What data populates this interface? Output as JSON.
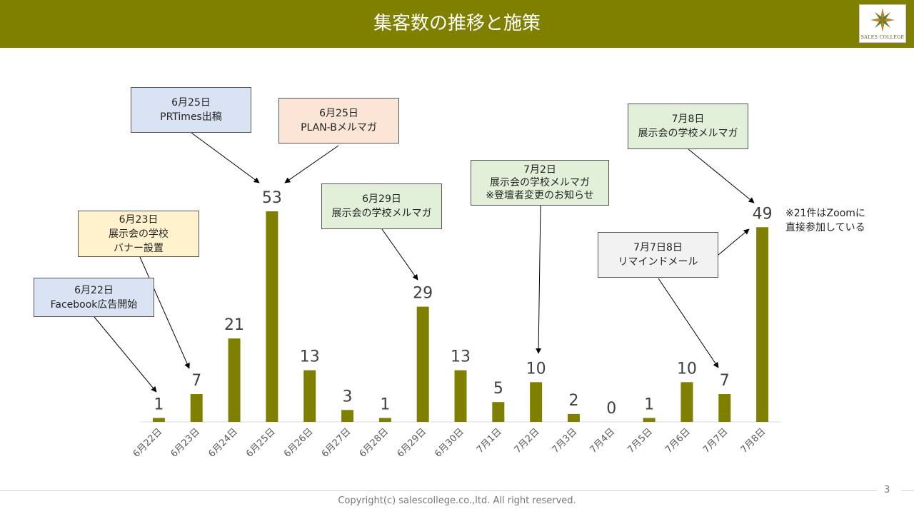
{
  "slide": {
    "title": "集客数の推移と施策",
    "logo_text": "SALES COLLEGE",
    "page_number": "3",
    "copyright": "Copyright(c) salescollege.co.,ltd. All right reserved.",
    "note": [
      "※21件はZoomに",
      "直接参加している"
    ]
  },
  "colors": {
    "header_bg": "#808000",
    "bar": "#808000",
    "callout_blue": "#dae3f3",
    "callout_orange": "#fbe5d6",
    "callout_yellow": "#fff2cc",
    "callout_green": "#e2f0d9",
    "callout_gray": "#f2f2f2"
  },
  "callouts": [
    {
      "id": "cb1",
      "lines": [
        "6月25日",
        "PRTimes出稿"
      ]
    },
    {
      "id": "cb2",
      "lines": [
        "6月25日",
        "PLAN-Bメルマガ"
      ]
    },
    {
      "id": "cb3",
      "lines": [
        "7月8日",
        "展示会の学校メルマガ"
      ]
    },
    {
      "id": "cb4",
      "lines": [
        "7月2日",
        "展示会の学校メルマガ",
        "※登壇者変更のお知らせ"
      ]
    },
    {
      "id": "cb5",
      "lines": [
        "6月29日",
        "展示会の学校メルマガ"
      ]
    },
    {
      "id": "cb6",
      "lines": [
        "6月23日",
        "展示会の学校",
        "バナー設置"
      ]
    },
    {
      "id": "cb7",
      "lines": [
        "7月7日8日",
        "リマインドメール"
      ]
    },
    {
      "id": "cb8",
      "lines": [
        "6月22日",
        "Facebook広告開始"
      ]
    }
  ],
  "chart_data": {
    "type": "bar",
    "title": "集客数の推移と施策",
    "xlabel": "",
    "ylabel": "",
    "ylim": [
      0,
      53
    ],
    "grid": false,
    "categories": [
      "6月22日",
      "6月23日",
      "6月24日",
      "6月25日",
      "6月26日",
      "6月27日",
      "6月28日",
      "6月29日",
      "6月30日",
      "7月1日",
      "7月2日",
      "7月3日",
      "7月4日",
      "7月5日",
      "7月6日",
      "7月7日",
      "7月8日"
    ],
    "values": [
      1,
      7,
      21,
      53,
      13,
      3,
      1,
      29,
      13,
      5,
      10,
      2,
      0,
      1,
      10,
      7,
      49
    ]
  }
}
